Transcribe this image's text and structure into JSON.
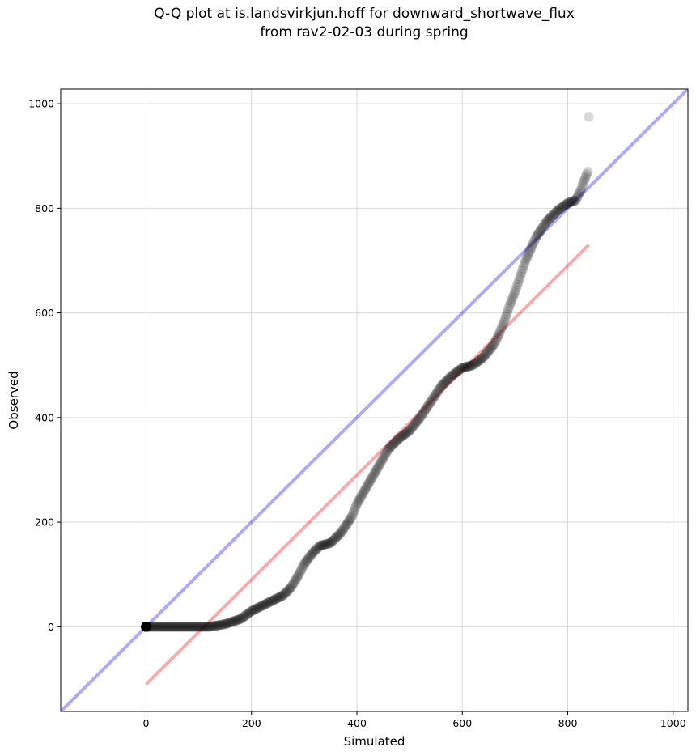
{
  "chart_data": {
    "type": "scatter",
    "title": "Q-Q plot at is.landsvirkjun.hoff for downward_shortwave_flux",
    "subtitle": "from rav2-02-03 during spring",
    "xlabel": "Simulated",
    "ylabel": "Observed",
    "xlim": [
      -162,
      1028
    ],
    "ylim": [
      -162,
      1028
    ],
    "xticks": [
      0,
      200,
      400,
      600,
      800,
      1000
    ],
    "yticks": [
      0,
      200,
      400,
      600,
      800,
      1000
    ],
    "grid": true,
    "colors": {
      "points": "#000000",
      "identity": "#0000ee",
      "fit": "#ee0000",
      "grid": "#d9d9d9"
    },
    "identity_line": {
      "x": [
        -162,
        1028
      ],
      "y": [
        -162,
        1028
      ]
    },
    "fit_line": {
      "x": [
        0,
        840
      ],
      "y": [
        -110,
        730
      ]
    },
    "quantile_curve": {
      "x": [
        0,
        120,
        150,
        180,
        200,
        230,
        260,
        275,
        290,
        300,
        315,
        330,
        350,
        370,
        390,
        400,
        420,
        440,
        460,
        480,
        500,
        520,
        540,
        560,
        580,
        600,
        620,
        640,
        660,
        670,
        680,
        690,
        700,
        710,
        720,
        740,
        760,
        780,
        800,
        815,
        820,
        825,
        828,
        832,
        838
      ],
      "y": [
        0,
        0,
        5,
        15,
        30,
        45,
        60,
        75,
        100,
        120,
        140,
        155,
        160,
        180,
        210,
        235,
        270,
        305,
        340,
        360,
        375,
        400,
        430,
        460,
        480,
        495,
        500,
        515,
        540,
        560,
        585,
        615,
        640,
        670,
        700,
        745,
        775,
        795,
        810,
        815,
        825,
        835,
        845,
        855,
        870
      ]
    },
    "outlier_points": [
      {
        "x": 840,
        "y": 975
      }
    ]
  }
}
